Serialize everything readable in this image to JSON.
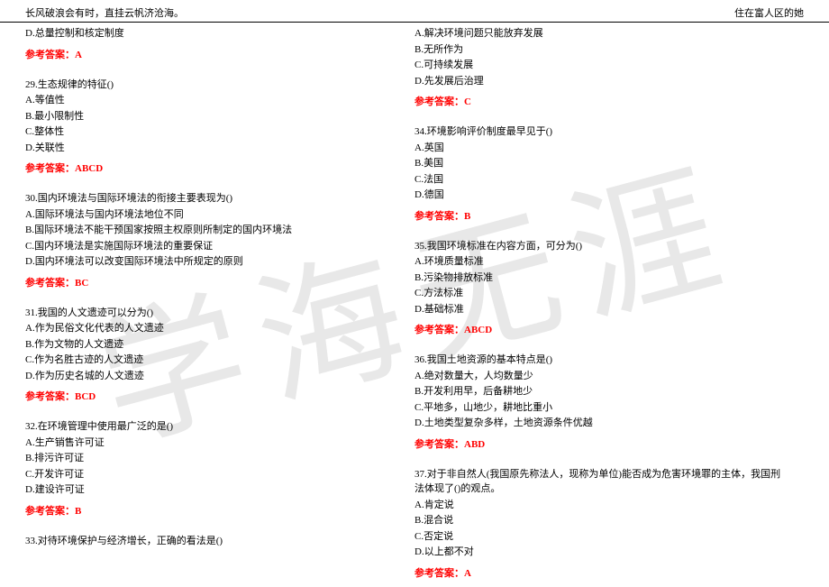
{
  "header": {
    "left": "长风破浪会有时，直挂云帆济沧海。",
    "right": "住在富人区的她"
  },
  "watermark": "学海无涯",
  "leftColumn": {
    "q28_optD": "D.总量控制和核定制度",
    "q28_answer": "参考答案：A",
    "q29": {
      "stem": "29.生态规律的特征()",
      "A": "A.等值性",
      "B": "B.最小限制性",
      "C": "C.整体性",
      "D": "D.关联性",
      "answer": "参考答案：ABCD"
    },
    "q30": {
      "stem": "30.国内环境法与国际环境法的衔接主要表现为()",
      "A": "A.国际环境法与国内环境法地位不同",
      "B": "B.国际环境法不能干预国家按照主权原则所制定的国内环境法",
      "C": "C.国内环境法是实施国际环境法的重要保证",
      "D": "D.国内环境法可以改变国际环境法中所规定的原则",
      "answer": "参考答案：BC"
    },
    "q31": {
      "stem": "31.我国的人文遗迹可以分为()",
      "A": "A.作为民俗文化代表的人文遗迹",
      "B": "B.作为文物的人文遗迹",
      "C": "C.作为名胜古迹的人文遗迹",
      "D": "D.作为历史名城的人文遗迹",
      "answer": "参考答案：BCD"
    },
    "q32": {
      "stem": "32.在环境管理中使用最广泛的是()",
      "A": "A.生产销售许可证",
      "B": "B.排污许可证",
      "C": "C.开发许可证",
      "D": "D.建设许可证",
      "answer": "参考答案：B"
    },
    "q33": {
      "stem": "33.对待环境保护与经济增长，正确的看法是()"
    }
  },
  "rightColumn": {
    "q33_opts": {
      "A": "A.解决环境问题只能放弃发展",
      "B": "B.无所作为",
      "C": "C.可持续发展",
      "D": "D.先发展后治理",
      "answer": "参考答案：C"
    },
    "q34": {
      "stem": "34.环境影响评价制度最早见于()",
      "A": "A.英国",
      "B": "B.美国",
      "C": "C.法国",
      "D": "D.德国",
      "answer": "参考答案：B"
    },
    "q35": {
      "stem": "35.我国环境标准在内容方面，可分为()",
      "A": "A.环境质量标准",
      "B": "B.污染物排放标准",
      "C": "C.方法标准",
      "D": "D.基础标准",
      "answer": "参考答案：ABCD"
    },
    "q36": {
      "stem": "36.我国土地资源的基本特点是()",
      "A": "A.绝对数量大，人均数量少",
      "B": "B.开发利用早，后备耕地少",
      "C": "C.平地多，山地少，耕地比重小",
      "D": "D.土地类型复杂多样，土地资源条件优越",
      "answer": "参考答案：ABD"
    },
    "q37": {
      "stem": "37.对于非自然人(我国原先称法人，现称为单位)能否成为危害环境罪的主体，我国刑法体现了()的观点。",
      "A": "A.肯定说",
      "B": "B.混合说",
      "C": "C.否定说",
      "D": "D.以上都不对",
      "answer": "参考答案：A"
    }
  },
  "colors": {
    "text": "#000000",
    "answer": "#ff0000",
    "watermark": "#e8e8e8",
    "background": "#ffffff"
  }
}
